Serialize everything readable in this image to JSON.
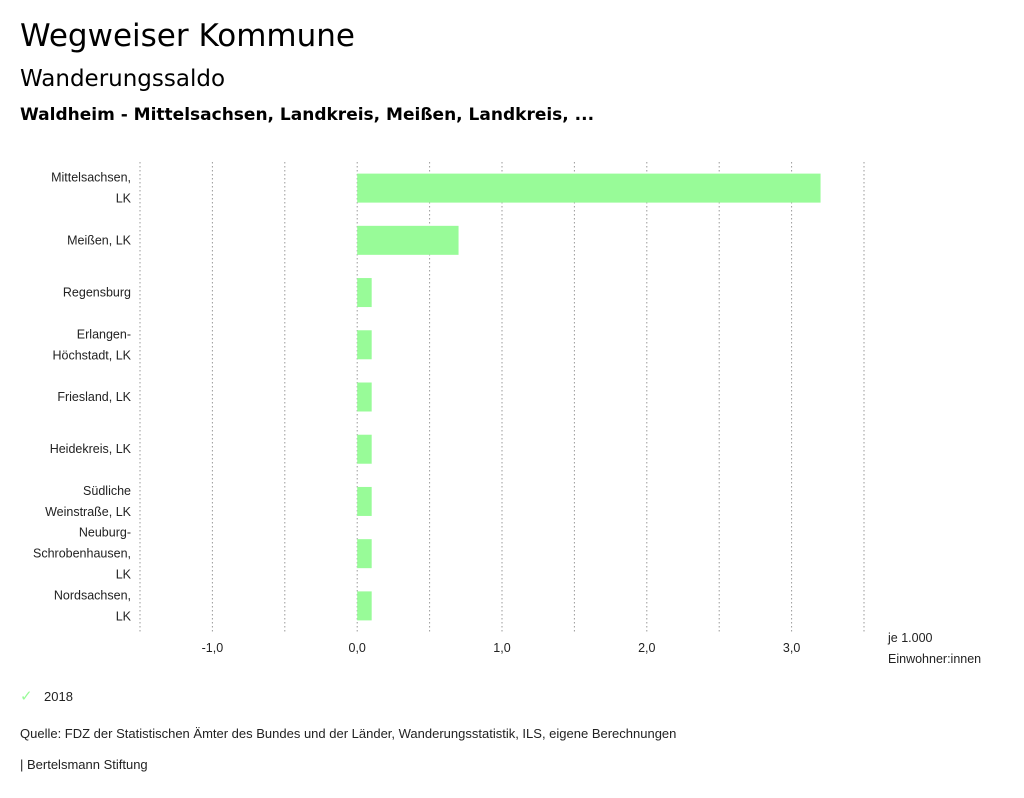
{
  "header": {
    "title": "Wegweiser Kommune",
    "subtitle": "Wanderungssaldo",
    "region": "Waldheim - Mittelsachsen, Landkreis, Meißen, Landkreis, ..."
  },
  "chart_data": {
    "type": "bar",
    "orientation": "horizontal",
    "categories": [
      [
        "Mittelsachsen,",
        "LK"
      ],
      [
        "Meißen, LK"
      ],
      [
        "Regensburg"
      ],
      [
        "Erlangen-",
        "Höchstadt, LK"
      ],
      [
        "Friesland, LK"
      ],
      [
        "Heidekreis, LK"
      ],
      [
        "Südliche",
        "Weinstraße, LK"
      ],
      [
        "Neuburg-",
        "Schrobenhausen,",
        "LK"
      ],
      [
        "Nordsachsen,",
        "LK"
      ]
    ],
    "series": [
      {
        "name": "2018",
        "color": "#98fb98",
        "values": [
          3.2,
          0.7,
          0.1,
          0.1,
          0.1,
          0.1,
          0.1,
          0.1,
          0.1
        ]
      }
    ],
    "xlim": [
      -1.5,
      3.5
    ],
    "xticks": [
      -1.0,
      0.0,
      1.0,
      2.0,
      3.0
    ],
    "xtick_labels": [
      "-1,0",
      "0,0",
      "1,0",
      "2,0",
      "3,0"
    ],
    "xlabel": [
      "je 1.000",
      "Einwohner:innen"
    ],
    "grid": true,
    "legend": "bottom-left"
  },
  "legend": {
    "label": "2018",
    "icon": "check-icon"
  },
  "footer": {
    "source": "Quelle: FDZ der Statistischen Ämter des Bundes und der Länder, Wanderungsstatistik, ILS, eigene Berechnungen",
    "credit": "| Bertelsmann Stiftung"
  }
}
